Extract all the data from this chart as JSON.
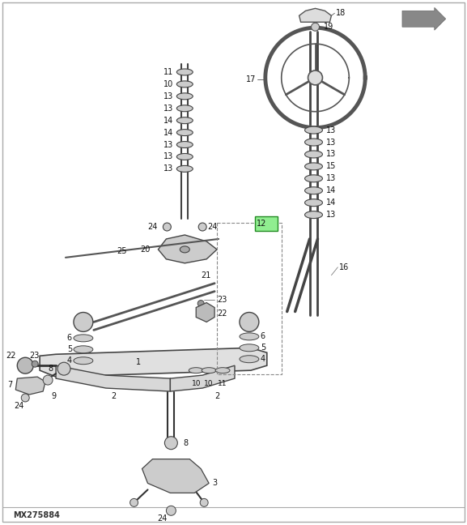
{
  "model_number": "MX275884",
  "bg_color": "#ffffff",
  "fig_width": 5.77,
  "fig_height": 6.48,
  "dpi": 100,
  "green_box_color": "#90EE90",
  "green_box_border": "#228B22",
  "line_color": "#333333",
  "part_color": "#cccccc",
  "part_ec": "#444444"
}
